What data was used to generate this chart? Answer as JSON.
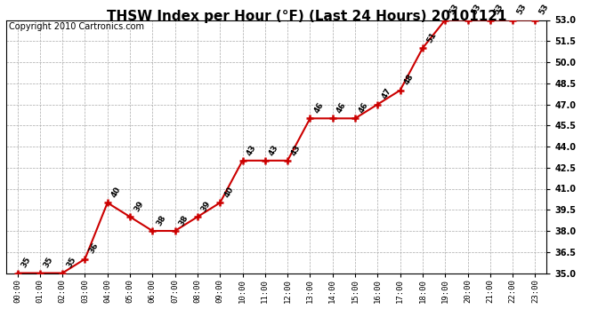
{
  "title": "THSW Index per Hour (°F) (Last 24 Hours) 20101121",
  "copyright": "Copyright 2010 Cartronics.com",
  "hours": [
    "00:00",
    "01:00",
    "02:00",
    "03:00",
    "04:00",
    "05:00",
    "06:00",
    "07:00",
    "08:00",
    "09:00",
    "10:00",
    "11:00",
    "12:00",
    "13:00",
    "14:00",
    "15:00",
    "16:00",
    "17:00",
    "18:00",
    "19:00",
    "20:00",
    "21:00",
    "22:00",
    "23:00"
  ],
  "values": [
    35,
    35,
    35,
    36,
    40,
    39,
    38,
    38,
    39,
    40,
    43,
    43,
    43,
    46,
    46,
    46,
    47,
    48,
    51,
    53,
    53,
    53,
    53,
    53
  ],
  "ylim": [
    35.0,
    53.0
  ],
  "yticks": [
    35.0,
    36.5,
    38.0,
    39.5,
    41.0,
    42.5,
    44.0,
    45.5,
    47.0,
    48.5,
    50.0,
    51.5,
    53.0
  ],
  "line_color": "#cc0000",
  "marker_color": "#cc0000",
  "bg_color": "#ffffff",
  "grid_color": "#aaaaaa",
  "title_fontsize": 11,
  "copyright_fontsize": 7,
  "label_fontsize": 7,
  "tick_fontsize": 7,
  "xlabel_fontsize": 6.5
}
